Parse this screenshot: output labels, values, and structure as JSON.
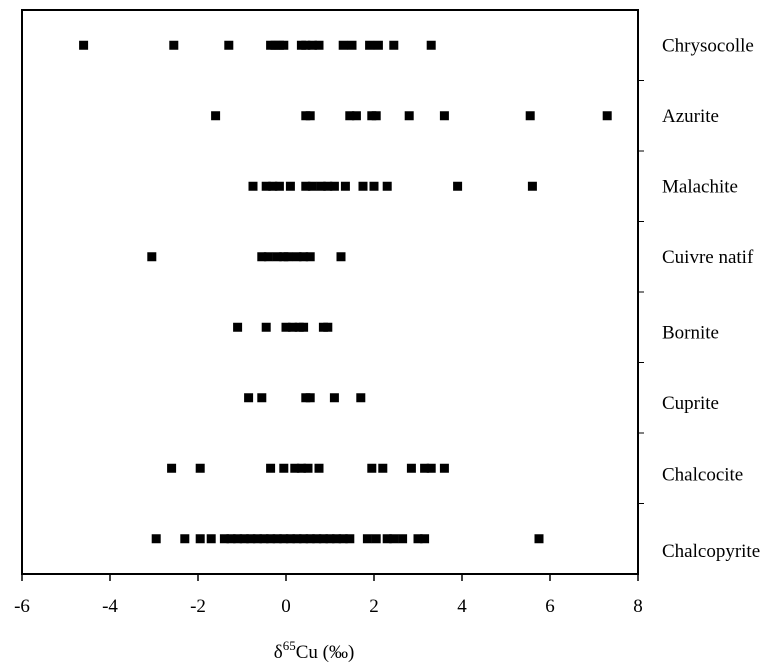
{
  "chart_data": {
    "type": "scatter",
    "title": "",
    "xlabel": "δ65Cu (‰)",
    "xlabel_parts": {
      "delta": "δ",
      "superscript": "65",
      "rest": "Cu (‰)"
    },
    "ylabel": "",
    "xlim": [
      -6,
      8
    ],
    "xticks": [
      -6,
      -4,
      -2,
      0,
      2,
      4,
      6,
      8
    ],
    "xtick_labels": [
      "-6",
      "-4",
      "-2",
      "0",
      "2",
      "4",
      "6",
      "8"
    ],
    "grid": false,
    "legend": "none",
    "marker": "square",
    "marker_color": "#000000",
    "categories": [
      "Chrysocolle",
      "Azurite",
      "Malachite",
      "Cuivre natif",
      "Bornite",
      "Cuprite",
      "Chalcocite",
      "Chalcopyrite"
    ],
    "series": [
      {
        "category": "Chrysocolle",
        "x": [
          -4.6,
          -2.55,
          -1.3,
          -0.35,
          -0.25,
          -0.15,
          -0.05,
          0.35,
          0.45,
          0.6,
          0.75,
          1.3,
          1.5,
          1.9,
          2.1,
          2.45,
          3.3
        ]
      },
      {
        "category": "Azurite",
        "x": [
          -1.6,
          0.45,
          0.55,
          1.45,
          1.6,
          1.95,
          2.05,
          2.8,
          3.6,
          5.55,
          7.3
        ]
      },
      {
        "category": "Malachite",
        "x": [
          -0.75,
          -0.45,
          -0.3,
          -0.15,
          0.1,
          0.45,
          0.6,
          0.8,
          0.95,
          1.1,
          1.35,
          1.75,
          2.0,
          2.3,
          3.9,
          5.6
        ]
      },
      {
        "category": "Cuivre natif",
        "x": [
          -3.05,
          -0.55,
          -0.4,
          -0.2,
          -0.05,
          0.05,
          0.25,
          0.4,
          0.55,
          1.25
        ]
      },
      {
        "category": "Bornite",
        "x": [
          -1.1,
          -0.45,
          0.0,
          0.15,
          0.3,
          0.4,
          0.85,
          0.95
        ]
      },
      {
        "category": "Cuprite",
        "x": [
          -0.85,
          -0.55,
          0.45,
          0.55,
          1.1,
          1.7
        ]
      },
      {
        "category": "Chalcocite",
        "x": [
          -2.6,
          -1.95,
          -0.35,
          -0.05,
          0.2,
          0.35,
          0.5,
          0.75,
          1.95,
          2.2,
          2.85,
          3.15,
          3.3,
          3.6
        ]
      },
      {
        "category": "Chalcopyrite",
        "x": [
          -2.95,
          -2.3,
          -1.95,
          -1.7,
          -1.4,
          -1.25,
          -1.1,
          -0.95,
          -0.8,
          -0.65,
          -0.5,
          -0.35,
          -0.2,
          -0.05,
          0.1,
          0.25,
          0.4,
          0.55,
          0.7,
          0.85,
          1.0,
          1.15,
          1.3,
          1.45,
          1.85,
          2.05,
          2.3,
          2.45,
          2.65,
          3.0,
          3.15,
          5.75
        ]
      }
    ]
  }
}
